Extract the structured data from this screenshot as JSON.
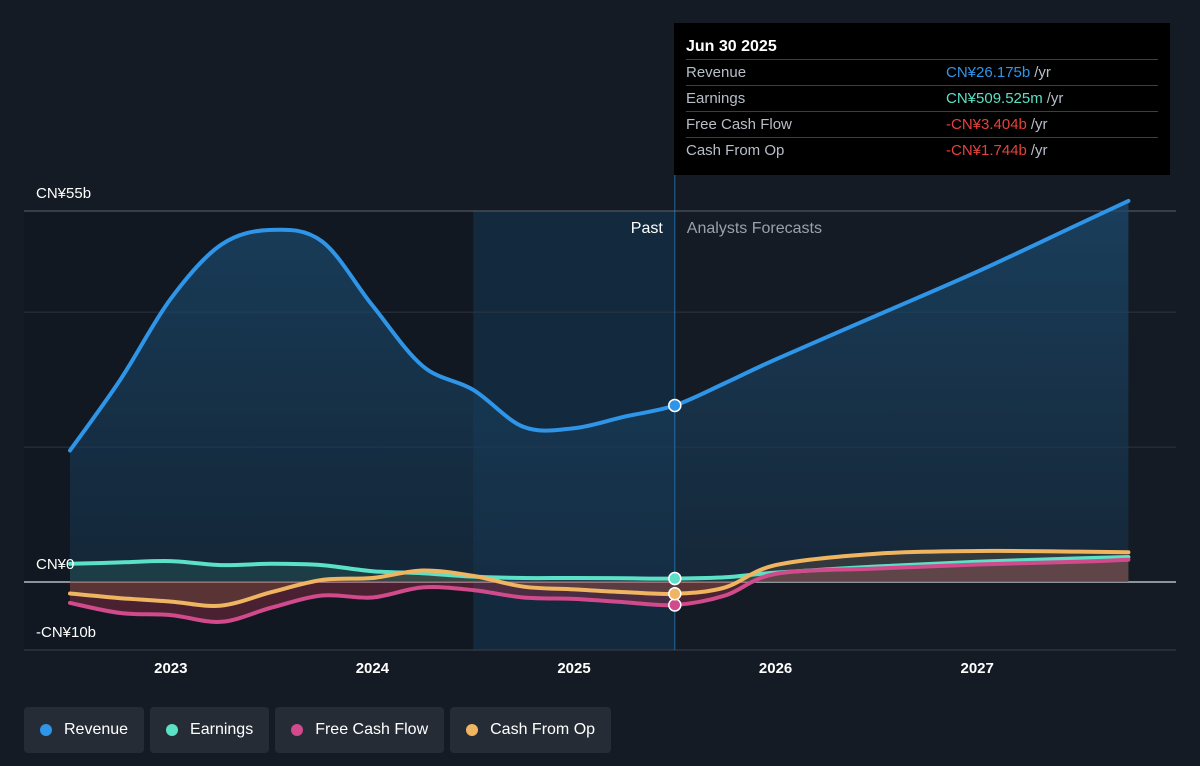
{
  "chart_data": {
    "type": "line",
    "y_axis": {
      "ticks": [
        "CN¥55b",
        "CN¥0",
        "-CN¥10b"
      ],
      "ylim": [
        -10,
        55
      ]
    },
    "x_axis": {
      "ticks": [
        "2023",
        "2024",
        "2025",
        "2026",
        "2027"
      ],
      "xlim": [
        2022.5,
        2027.75
      ]
    },
    "region_labels": {
      "past": "Past",
      "forecast": "Analysts Forecasts"
    },
    "past_end": 2025.5,
    "highlight_start": 2024.5,
    "series": [
      {
        "name": "Revenue",
        "color": "#2f95e8",
        "points": [
          [
            2022.5,
            19.5
          ],
          [
            2022.75,
            30
          ],
          [
            2023.0,
            42
          ],
          [
            2023.25,
            50
          ],
          [
            2023.5,
            52.2
          ],
          [
            2023.75,
            50.5
          ],
          [
            2024.0,
            41
          ],
          [
            2024.25,
            32
          ],
          [
            2024.5,
            28.5
          ],
          [
            2024.75,
            23
          ],
          [
            2025.0,
            22.8
          ],
          [
            2025.25,
            24.5
          ],
          [
            2025.5,
            26.175
          ],
          [
            2025.75,
            29.5
          ],
          [
            2026.0,
            33
          ],
          [
            2026.5,
            39.5
          ],
          [
            2027.0,
            46
          ],
          [
            2027.5,
            53
          ],
          [
            2027.75,
            56.5
          ]
        ]
      },
      {
        "name": "Earnings",
        "color": "#5ce0c6",
        "points": [
          [
            2022.5,
            2.7
          ],
          [
            2022.75,
            2.9
          ],
          [
            2023.0,
            3.1
          ],
          [
            2023.25,
            2.5
          ],
          [
            2023.5,
            2.7
          ],
          [
            2023.75,
            2.5
          ],
          [
            2024.0,
            1.6
          ],
          [
            2024.25,
            1.3
          ],
          [
            2024.5,
            0.8
          ],
          [
            2024.75,
            0.6
          ],
          [
            2025.0,
            0.6
          ],
          [
            2025.25,
            0.55
          ],
          [
            2025.5,
            0.51
          ],
          [
            2025.75,
            0.7
          ],
          [
            2026.0,
            1.4
          ],
          [
            2026.5,
            2.3
          ],
          [
            2027.0,
            3.0
          ],
          [
            2027.5,
            3.5
          ],
          [
            2027.75,
            3.7
          ]
        ]
      },
      {
        "name": "Free Cash Flow",
        "color": "#d04a8c",
        "points": [
          [
            2022.5,
            -3.1
          ],
          [
            2022.75,
            -4.6
          ],
          [
            2023.0,
            -4.9
          ],
          [
            2023.25,
            -5.9
          ],
          [
            2023.5,
            -3.8
          ],
          [
            2023.75,
            -2.0
          ],
          [
            2024.0,
            -2.3
          ],
          [
            2024.25,
            -0.8
          ],
          [
            2024.5,
            -1.2
          ],
          [
            2024.75,
            -2.3
          ],
          [
            2025.0,
            -2.5
          ],
          [
            2025.25,
            -3.0
          ],
          [
            2025.5,
            -3.404
          ],
          [
            2025.75,
            -2.0
          ],
          [
            2026.0,
            1.2
          ],
          [
            2026.5,
            2.0
          ],
          [
            2027.0,
            2.6
          ],
          [
            2027.5,
            3.0
          ],
          [
            2027.75,
            3.3
          ]
        ]
      },
      {
        "name": "Cash From Op",
        "color": "#f0b561",
        "points": [
          [
            2022.5,
            -1.7
          ],
          [
            2022.75,
            -2.4
          ],
          [
            2023.0,
            -2.9
          ],
          [
            2023.25,
            -3.5
          ],
          [
            2023.5,
            -1.5
          ],
          [
            2023.75,
            0.3
          ],
          [
            2024.0,
            0.6
          ],
          [
            2024.25,
            1.7
          ],
          [
            2024.5,
            0.9
          ],
          [
            2024.75,
            -0.7
          ],
          [
            2025.0,
            -1.1
          ],
          [
            2025.25,
            -1.5
          ],
          [
            2025.5,
            -1.744
          ],
          [
            2025.75,
            -0.8
          ],
          [
            2026.0,
            2.5
          ],
          [
            2026.5,
            4.2
          ],
          [
            2027.0,
            4.6
          ],
          [
            2027.5,
            4.5
          ],
          [
            2027.75,
            4.4
          ]
        ]
      }
    ],
    "tooltip": {
      "date": "Jun 30 2025",
      "rows": [
        {
          "label": "Revenue",
          "value": "CN¥26.175b",
          "unit": "/yr",
          "color": "#2f95e8"
        },
        {
          "label": "Earnings",
          "value": "CN¥509.525m",
          "unit": "/yr",
          "color": "#5ce0c6"
        },
        {
          "label": "Free Cash Flow",
          "value": "-CN¥3.404b",
          "unit": "/yr",
          "color": "#e8413b"
        },
        {
          "label": "Cash From Op",
          "value": "-CN¥1.744b",
          "unit": "/yr",
          "color": "#e8413b"
        }
      ]
    }
  },
  "legend": [
    {
      "label": "Revenue",
      "color": "#2f95e8"
    },
    {
      "label": "Earnings",
      "color": "#5ce0c6"
    },
    {
      "label": "Free Cash Flow",
      "color": "#d04a8c"
    },
    {
      "label": "Cash From Op",
      "color": "#f0b561"
    }
  ]
}
